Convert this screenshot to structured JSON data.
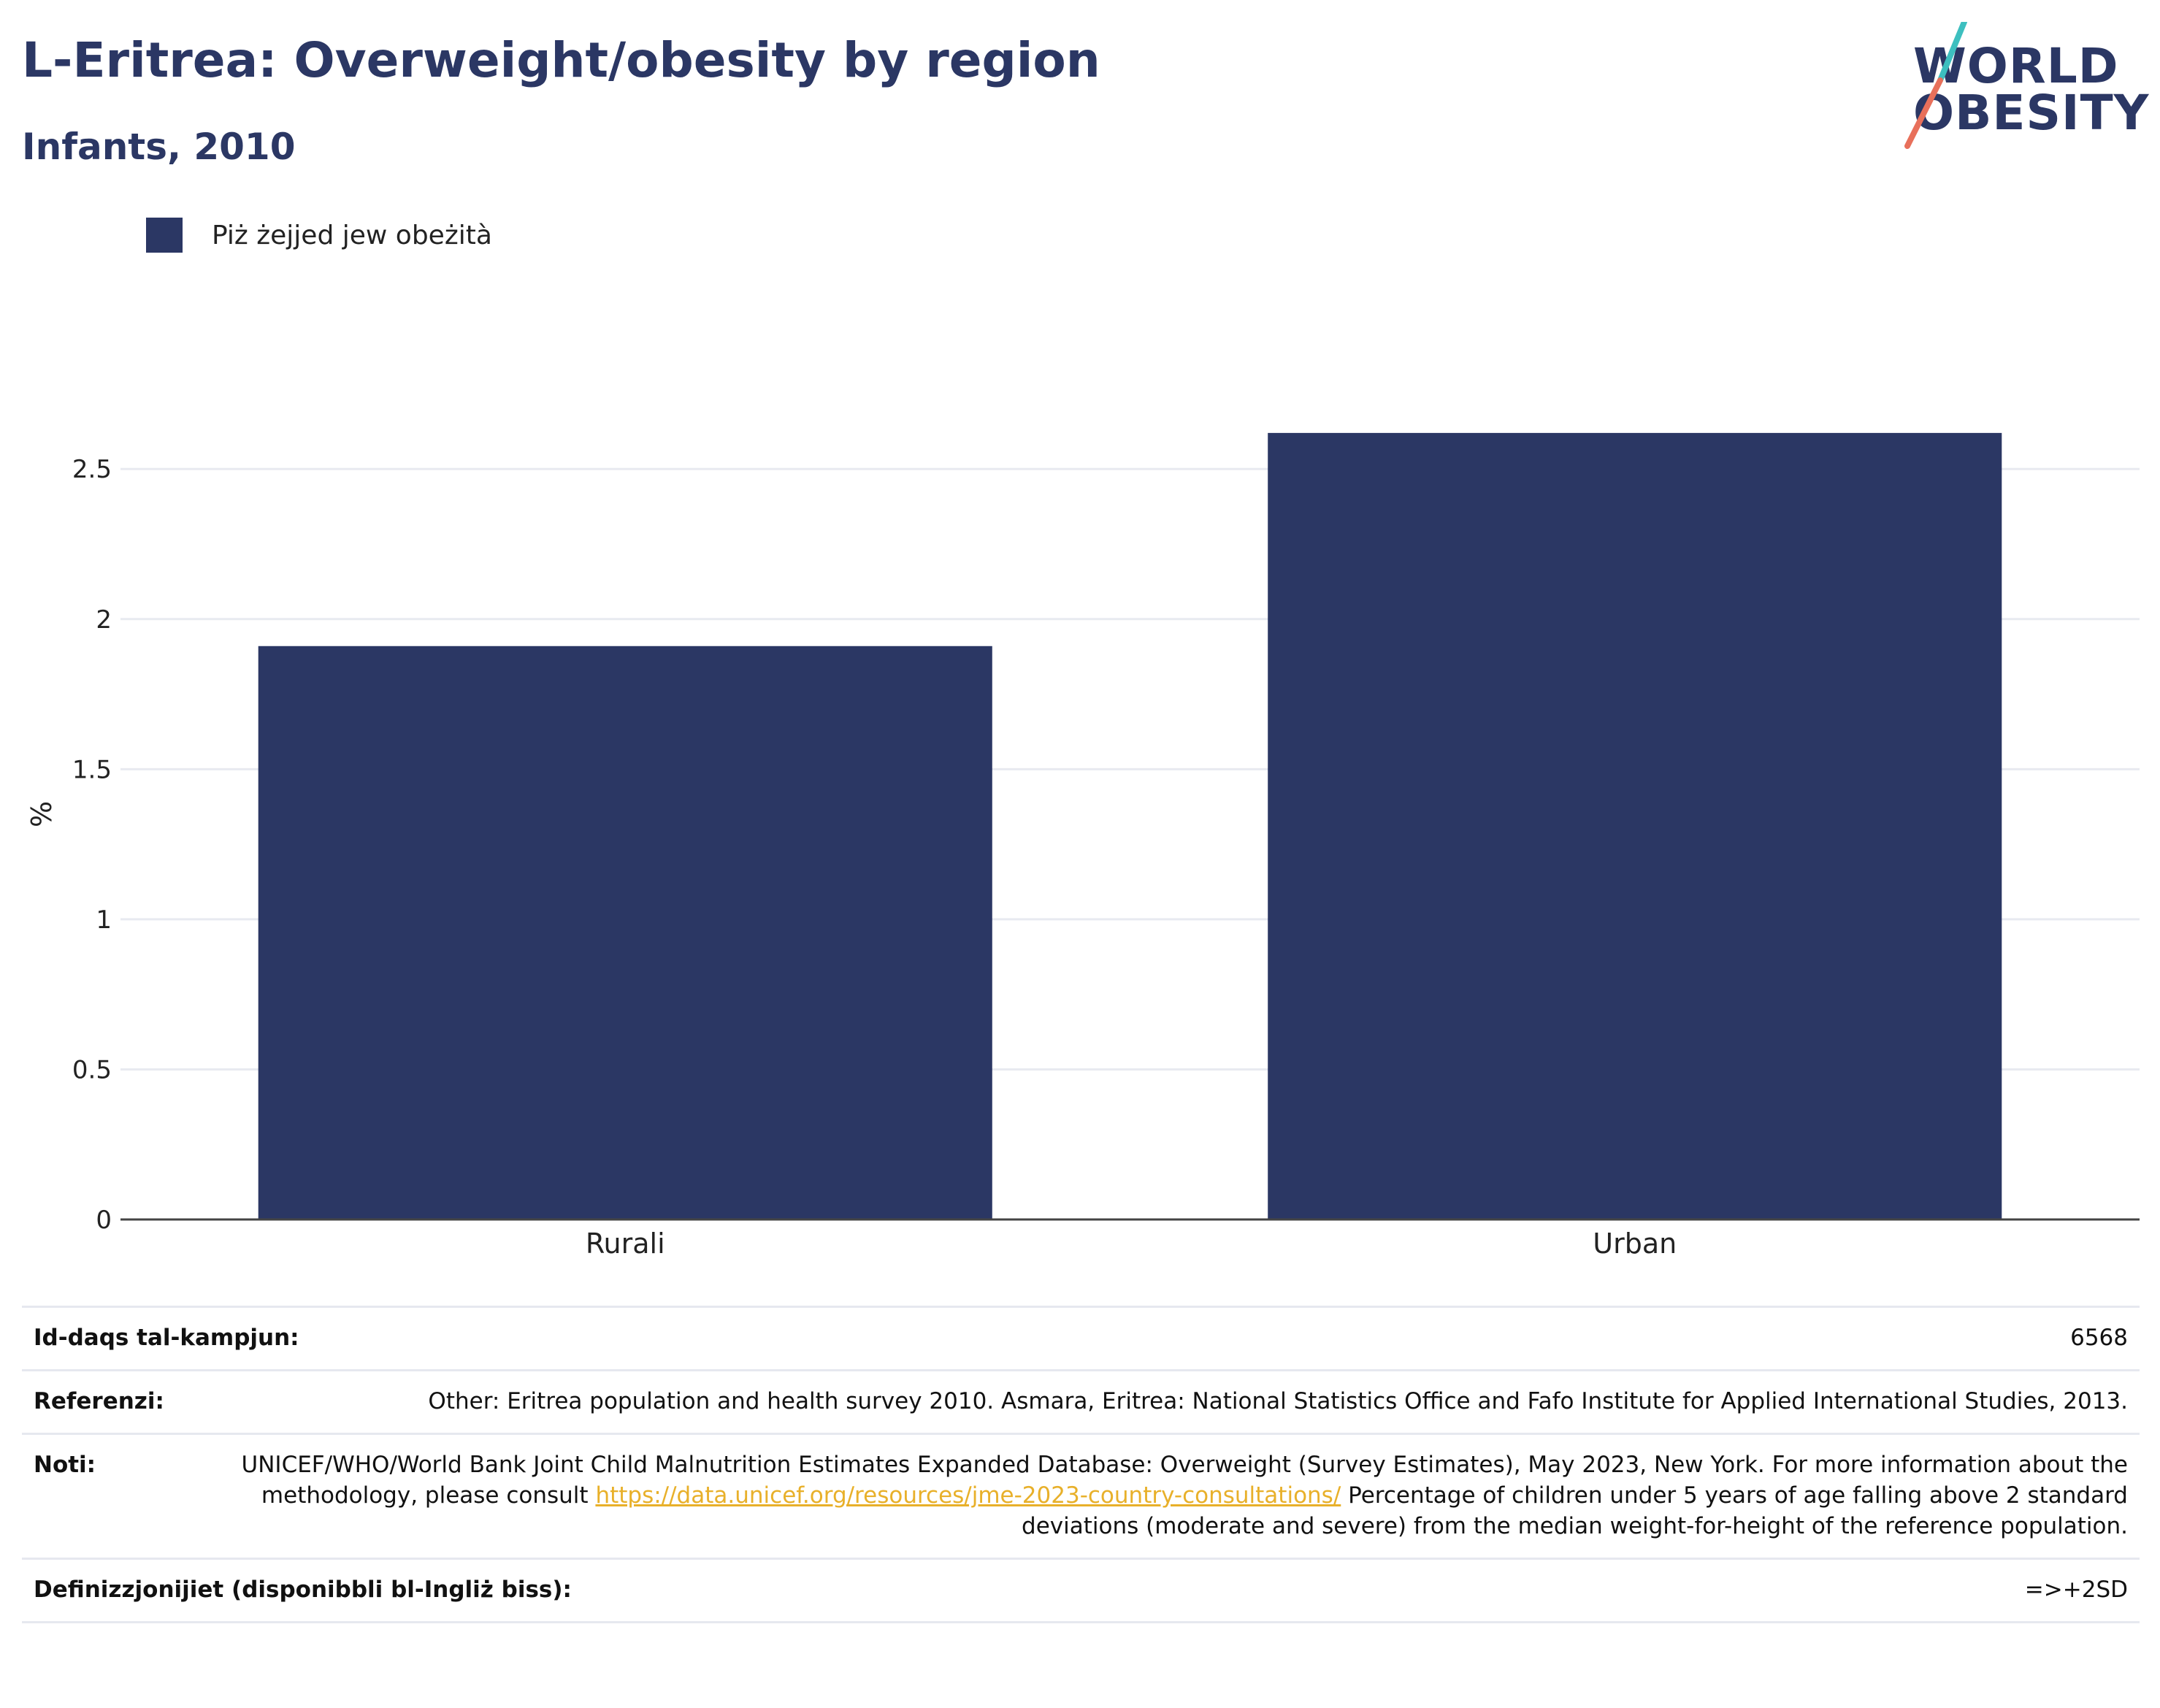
{
  "title": "L-Eritrea: Overweight/obesity by region",
  "subtitle": "Infants, 2010",
  "logo": {
    "line1": "WORLD",
    "line2": "OBESITY"
  },
  "colors": {
    "bar": "#2b3764",
    "accent_teal": "#3dbfbf",
    "accent_coral": "#e8705b",
    "link": "#e8b02a"
  },
  "chart_data": {
    "type": "bar",
    "categories": [
      "Rurali",
      "Urban"
    ],
    "series": [
      {
        "name": "Piż żejjed jew obeżità",
        "values": [
          1.91,
          2.62
        ]
      }
    ],
    "title": "L-Eritrea: Overweight/obesity by region",
    "subtitle": "Infants, 2010",
    "xlabel": "",
    "ylabel": "%",
    "ylim": [
      0,
      2.7
    ],
    "yticks": [
      0,
      0.5,
      1,
      1.5,
      2,
      2.5
    ],
    "ytick_labels": [
      "0",
      "0.5",
      "1",
      "1.5",
      "2",
      "2.5"
    ],
    "grid": true,
    "legend_position": "top-left"
  },
  "meta": {
    "sample_size": {
      "label": "Id-daqs tal-kampjun:",
      "value": "6568"
    },
    "references": {
      "label": "Referenzi:",
      "value": "Other: Eritrea population and health survey 2010. Asmara, Eritrea: National Statistics Office and Fafo Institute for Applied International Studies, 2013."
    },
    "notes": {
      "label": "Noti:",
      "text_before": "UNICEF/WHO/World Bank Joint Child Malnutrition Estimates Expanded Database: Overweight (Survey Estimates), May 2023, New York. For more information about the methodology, please consult ",
      "link": "https://data.unicef.org/resources/jme-2023-country-consultations/",
      "text_after": " Percentage of children under 5 years of age falling above 2 standard deviations (moderate and severe) from the median weight-for-height of the reference population."
    },
    "definitions": {
      "label": "Definizzjonijiet (disponibbli bl-Ingliż biss):",
      "value": "=>+2SD"
    }
  }
}
